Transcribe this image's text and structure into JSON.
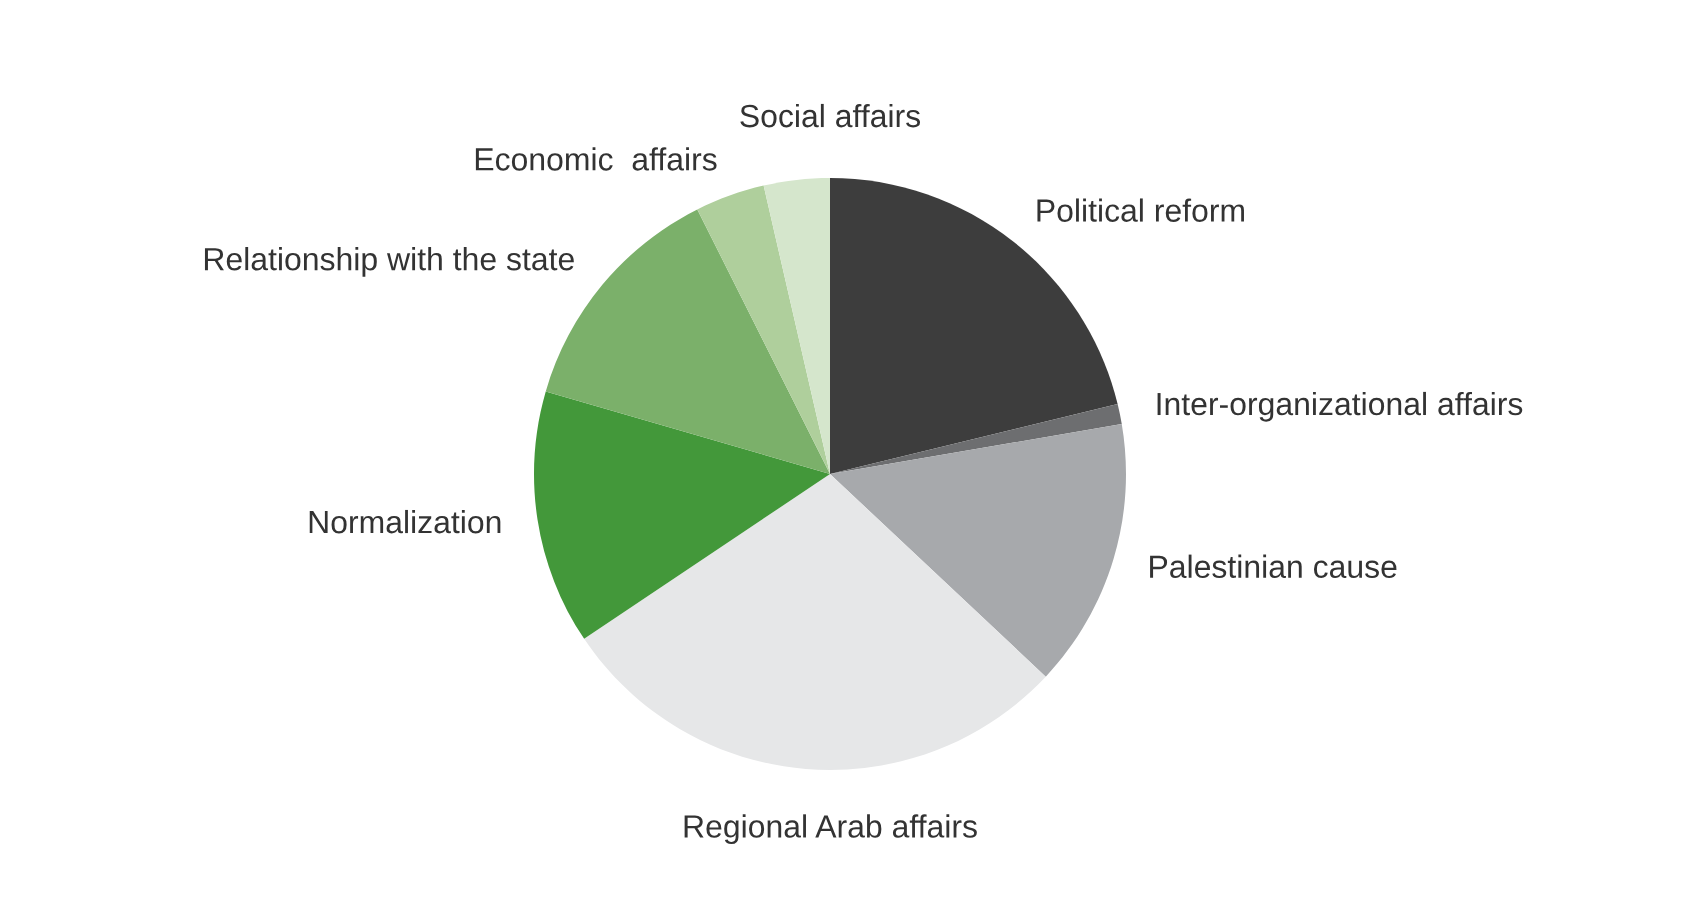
{
  "chart_data": {
    "type": "pie",
    "categories": [
      "Political reform",
      "Inter-organizational affairs",
      "Palestinian cause",
      "Regional Arab affairs",
      "Normalization",
      "Relationship with the state",
      "Economic  affairs",
      "Social affairs"
    ],
    "values": [
      21.2,
      1.1,
      14.7,
      28.6,
      13.9,
      13.1,
      3.8,
      3.6
    ],
    "colors": [
      "#3d3d3d",
      "#6d6e70",
      "#a7a9ac",
      "#e6e7e8",
      "#43983a",
      "#7bb06a",
      "#afcf9c",
      "#d5e6cc"
    ],
    "legend": false
  }
}
